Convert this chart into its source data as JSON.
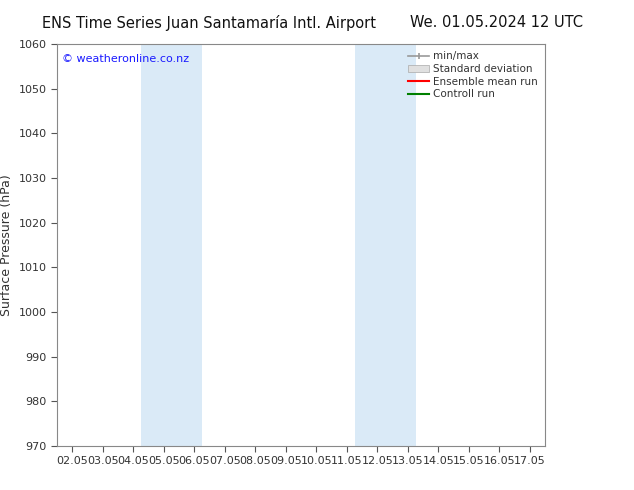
{
  "title_left": "ENS Time Series Juan Santamaría Intl. Airport",
  "title_right": "We. 01.05.2024 12 UTC",
  "ylabel": "Surface Pressure (hPa)",
  "ylim": [
    970,
    1060
  ],
  "yticks": [
    970,
    980,
    990,
    1000,
    1010,
    1020,
    1030,
    1040,
    1050,
    1060
  ],
  "xlabels": [
    "02.05",
    "03.05",
    "04.05",
    "05.05",
    "06.05",
    "07.05",
    "08.05",
    "09.05",
    "10.05",
    "11.05",
    "12.05",
    "13.05",
    "14.05",
    "15.05",
    "16.05",
    "17.05"
  ],
  "xvalues": [
    0,
    1,
    2,
    3,
    4,
    5,
    6,
    7,
    8,
    9,
    10,
    11,
    12,
    13,
    14,
    15
  ],
  "xlim": [
    -0.5,
    15.5
  ],
  "shaded_bands": [
    {
      "xmin": 2.25,
      "xmax": 4.25
    },
    {
      "xmin": 9.25,
      "xmax": 11.25
    }
  ],
  "shade_color": "#daeaf7",
  "watermark": "© weatheronline.co.nz",
  "watermark_color": "#1a1aff",
  "legend_entries": [
    "min/max",
    "Standard deviation",
    "Ensemble mean run",
    "Controll run"
  ],
  "legend_colors": [
    "#999999",
    "#cccccc",
    "#ff0000",
    "#008000"
  ],
  "background_color": "#ffffff",
  "axes_color": "#555555",
  "title_fontsize": 10.5,
  "tick_fontsize": 8,
  "ylabel_fontsize": 9
}
